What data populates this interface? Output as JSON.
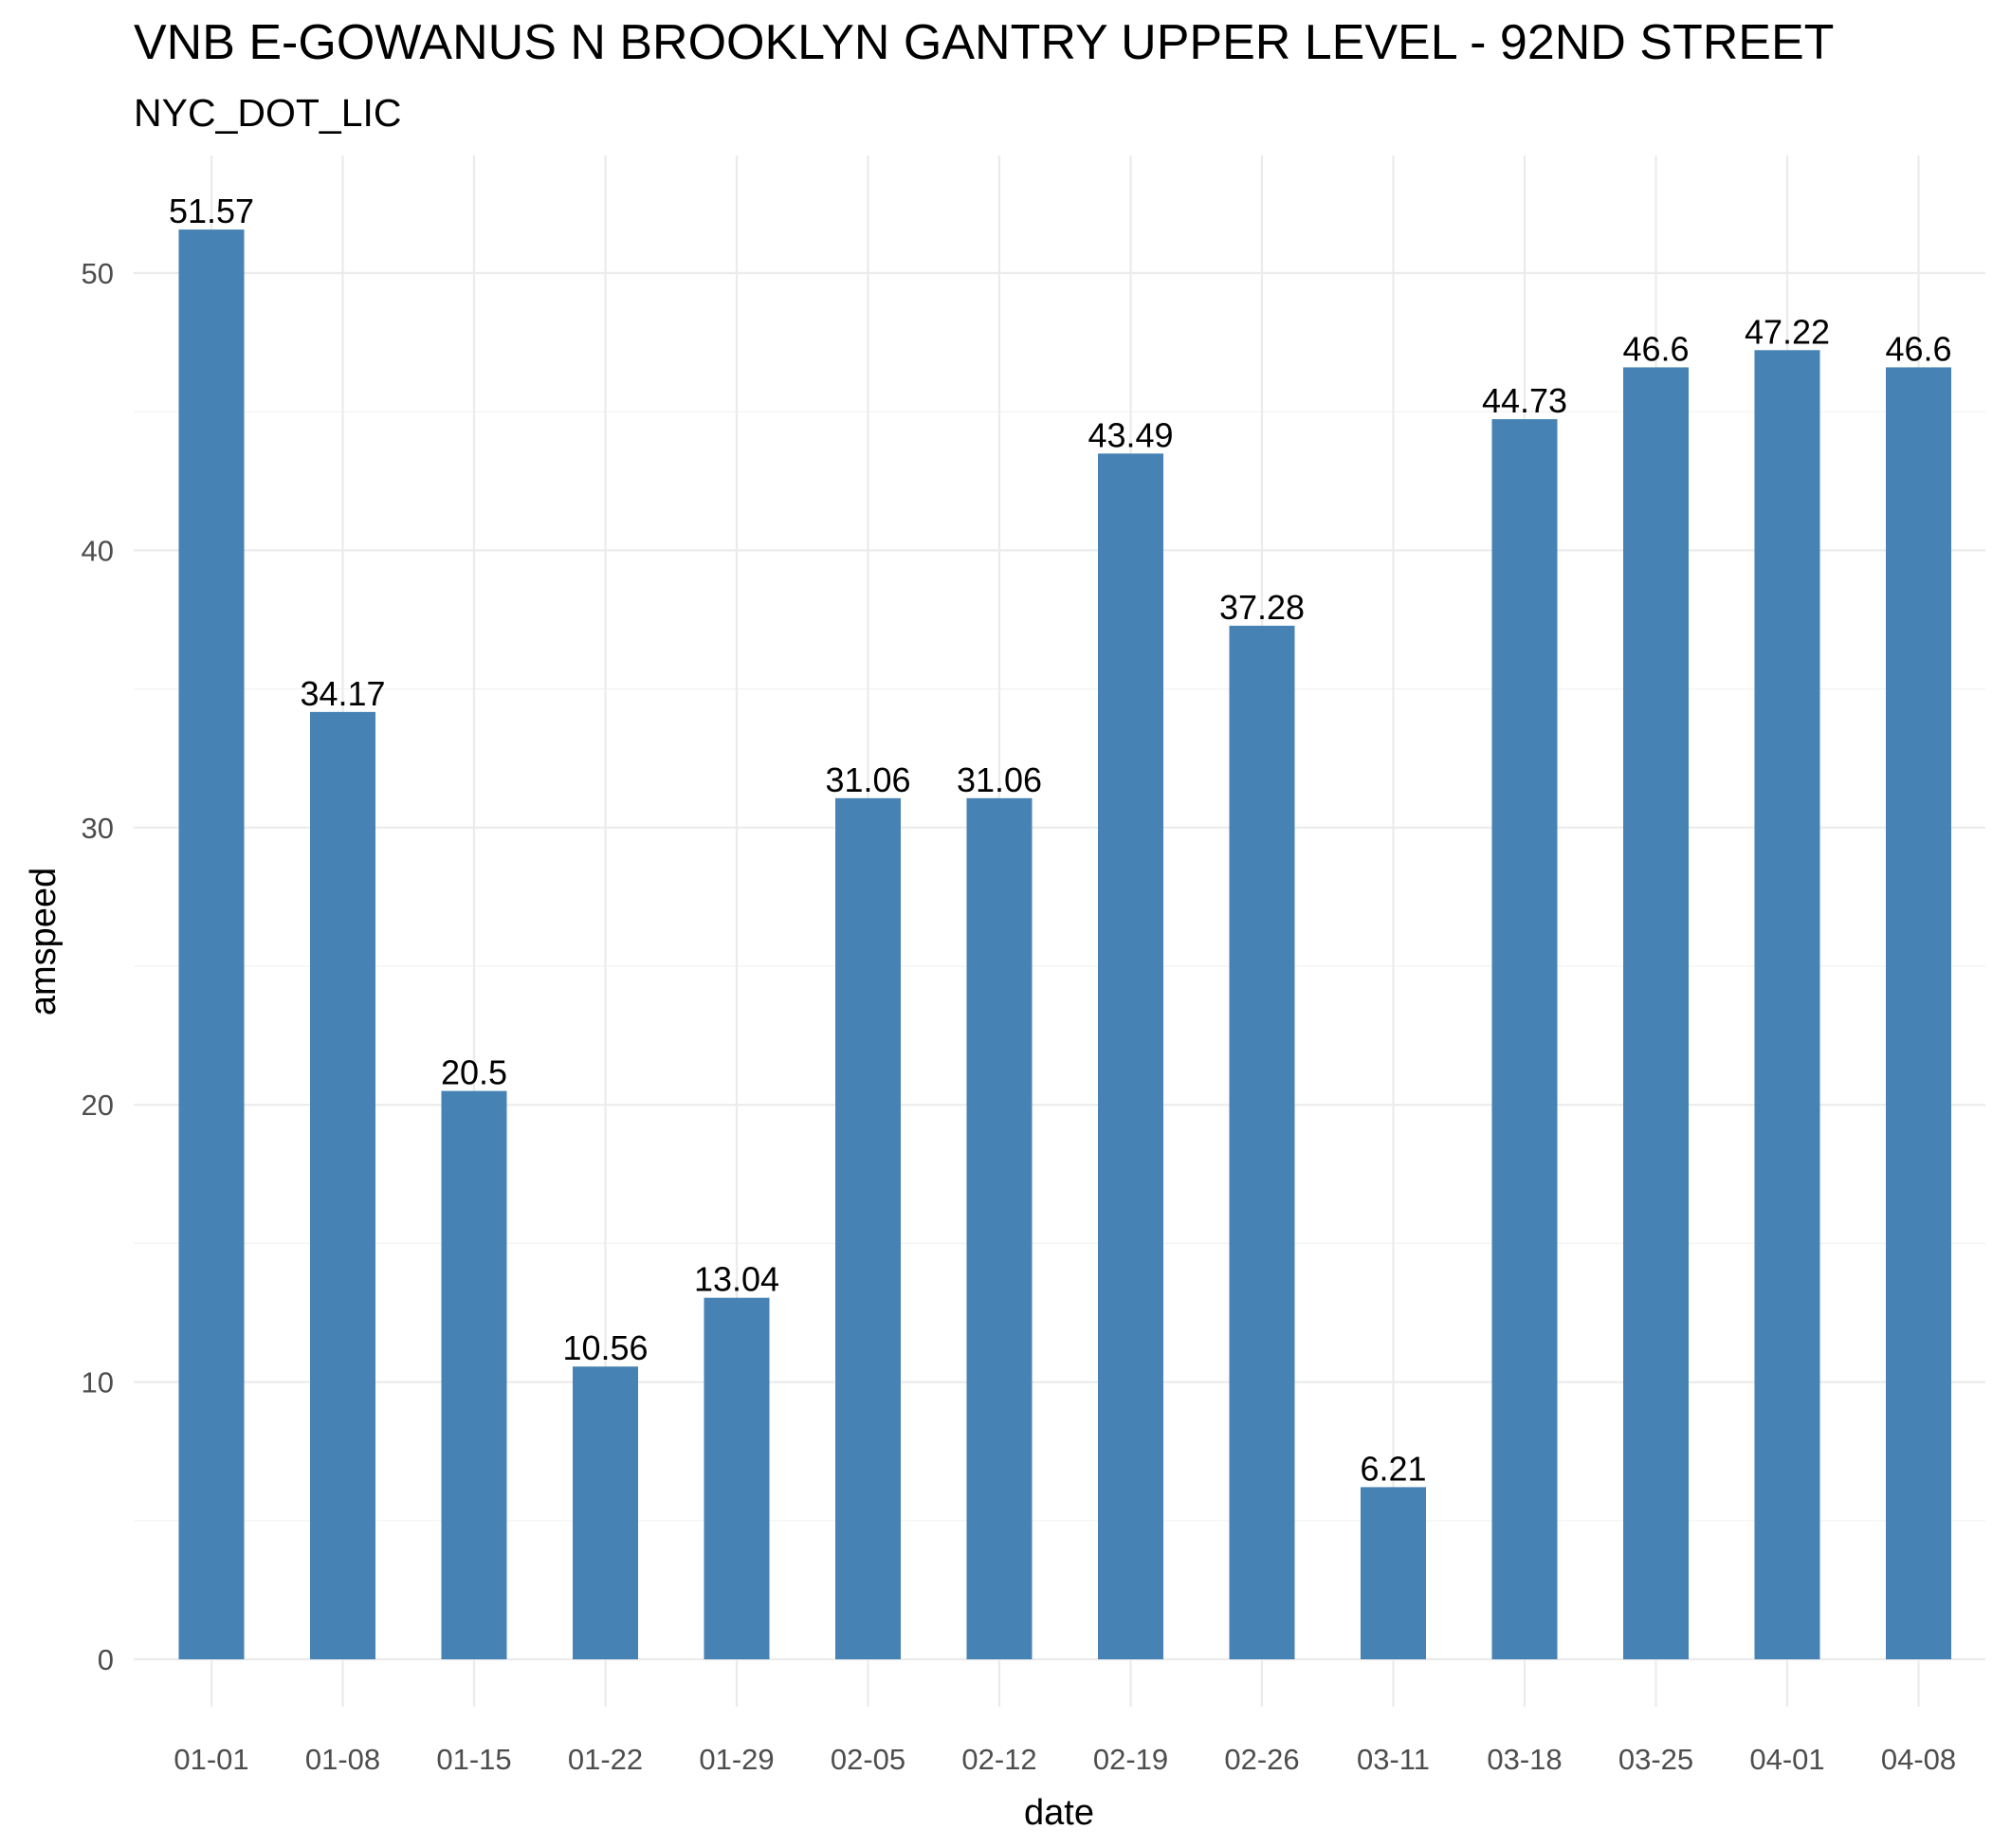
{
  "chart_data": {
    "type": "bar",
    "title": "VNB E-GOWANUS N BROOKLYN GANTRY UPPER LEVEL - 92ND STREET",
    "subtitle": "NYC_DOT_LIC",
    "xlabel": "date",
    "ylabel": "amspeed",
    "categories": [
      "01-01",
      "01-08",
      "01-15",
      "01-22",
      "01-29",
      "02-05",
      "02-12",
      "02-19",
      "02-26",
      "03-11",
      "03-18",
      "03-25",
      "04-01",
      "04-08"
    ],
    "values": [
      51.57,
      34.17,
      20.5,
      10.56,
      13.04,
      31.06,
      31.06,
      43.49,
      37.28,
      6.21,
      44.73,
      46.6,
      47.22,
      46.6
    ],
    "value_labels": [
      "51.57",
      "34.17",
      "20.5",
      "10.56",
      "13.04",
      "31.06",
      "31.06",
      "43.49",
      "37.28",
      "6.21",
      "44.73",
      "46.6",
      "47.22",
      "46.6"
    ],
    "yticks": [
      0,
      10,
      20,
      30,
      40,
      50
    ],
    "ytick_labels": [
      "0",
      "10",
      "20",
      "30",
      "40",
      "50"
    ],
    "ylim": [
      0,
      54.15
    ],
    "grid": true,
    "legend": "none",
    "bar_color": "#4682b4"
  }
}
